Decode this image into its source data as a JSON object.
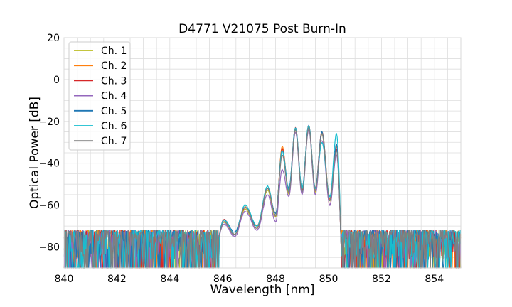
{
  "chart_data": {
    "type": "line",
    "title": "D4771 V21075 Post Burn-In",
    "xlabel": "Wavelength [nm]",
    "ylabel": "Optical Power [dB]",
    "xlim": [
      840,
      855
    ],
    "ylim": [
      -90,
      20
    ],
    "xticks": [
      840,
      842,
      844,
      846,
      848,
      850,
      852,
      854
    ],
    "yticks": [
      20,
      0,
      -20,
      -40,
      -60,
      -80
    ],
    "x_minor_step": 0.5,
    "y_minor_step": 5,
    "grid": true,
    "legend_position": "top-left",
    "noise_floor": -80,
    "series": [
      {
        "name": "Ch. 1",
        "color": "#bcbd22",
        "peaks": [
          [
            846.05,
            -68
          ],
          [
            846.85,
            -62
          ],
          [
            847.7,
            -53
          ],
          [
            848.25,
            -33
          ],
          [
            848.75,
            -24
          ],
          [
            849.25,
            -23
          ],
          [
            849.75,
            -26
          ],
          [
            850.3,
            -34
          ]
        ],
        "dips": [
          [
            846.45,
            -74
          ],
          [
            847.3,
            -71
          ],
          [
            848.0,
            -66
          ],
          [
            848.5,
            -55
          ],
          [
            849.0,
            -54
          ],
          [
            849.5,
            -54
          ],
          [
            850.05,
            -58
          ]
        ]
      },
      {
        "name": "Ch. 2",
        "color": "#ff7f0e",
        "peaks": [
          [
            846.05,
            -68
          ],
          [
            846.85,
            -61
          ],
          [
            847.7,
            -52
          ],
          [
            848.25,
            -32
          ],
          [
            848.75,
            -24
          ],
          [
            849.25,
            -22
          ],
          [
            849.75,
            -25
          ],
          [
            850.3,
            -32
          ]
        ],
        "dips": [
          [
            846.45,
            -74
          ],
          [
            847.3,
            -70
          ],
          [
            848.0,
            -65
          ],
          [
            848.5,
            -54
          ],
          [
            849.0,
            -53
          ],
          [
            849.5,
            -53
          ],
          [
            850.05,
            -57
          ]
        ]
      },
      {
        "name": "Ch. 3",
        "color": "#d62728",
        "peaks": [
          [
            846.05,
            -67
          ],
          [
            846.85,
            -61
          ],
          [
            847.7,
            -52
          ],
          [
            848.25,
            -33
          ],
          [
            848.75,
            -23
          ],
          [
            849.25,
            -22
          ],
          [
            849.75,
            -25
          ],
          [
            850.3,
            -33
          ]
        ],
        "dips": [
          [
            846.45,
            -74
          ],
          [
            847.3,
            -70
          ],
          [
            848.0,
            -65
          ],
          [
            848.5,
            -53
          ],
          [
            849.0,
            -53
          ],
          [
            849.5,
            -52
          ],
          [
            850.05,
            -60
          ]
        ]
      },
      {
        "name": "Ch. 4",
        "color": "#9467bd",
        "peaks": [
          [
            846.05,
            -69
          ],
          [
            846.85,
            -63
          ],
          [
            847.7,
            -55
          ],
          [
            848.25,
            -43
          ],
          [
            848.75,
            -25
          ],
          [
            849.25,
            -24
          ],
          [
            849.75,
            -29
          ],
          [
            850.3,
            -36
          ]
        ],
        "dips": [
          [
            846.45,
            -75
          ],
          [
            847.3,
            -72
          ],
          [
            848.0,
            -68
          ],
          [
            848.5,
            -56
          ],
          [
            849.0,
            -55
          ],
          [
            849.5,
            -55
          ],
          [
            850.05,
            -60
          ]
        ]
      },
      {
        "name": "Ch. 5",
        "color": "#1f77b4",
        "peaks": [
          [
            846.05,
            -67
          ],
          [
            846.85,
            -61
          ],
          [
            847.7,
            -52
          ],
          [
            848.25,
            -34
          ],
          [
            848.75,
            -23
          ],
          [
            849.25,
            -22
          ],
          [
            849.75,
            -25
          ],
          [
            850.3,
            -31
          ]
        ],
        "dips": [
          [
            846.45,
            -73
          ],
          [
            847.3,
            -70
          ],
          [
            848.0,
            -64
          ],
          [
            848.5,
            -52
          ],
          [
            849.0,
            -52
          ],
          [
            849.5,
            -52
          ],
          [
            850.05,
            -58
          ]
        ]
      },
      {
        "name": "Ch. 6",
        "color": "#17becf",
        "peaks": [
          [
            846.05,
            -67
          ],
          [
            846.85,
            -60
          ],
          [
            847.7,
            -51
          ],
          [
            848.25,
            -34
          ],
          [
            848.75,
            -23
          ],
          [
            849.25,
            -22
          ],
          [
            849.75,
            -30
          ],
          [
            850.3,
            -26
          ]
        ],
        "dips": [
          [
            846.45,
            -74
          ],
          [
            847.3,
            -70
          ],
          [
            848.0,
            -65
          ],
          [
            848.5,
            -53
          ],
          [
            849.0,
            -52
          ],
          [
            849.5,
            -52
          ],
          [
            850.05,
            -56
          ]
        ]
      },
      {
        "name": "Ch. 7",
        "color": "#7f7f7f",
        "peaks": [
          [
            846.05,
            -68
          ],
          [
            846.85,
            -61
          ],
          [
            847.7,
            -52
          ],
          [
            848.25,
            -36
          ],
          [
            848.75,
            -24
          ],
          [
            849.25,
            -23
          ],
          [
            849.75,
            -26
          ],
          [
            850.3,
            -34
          ]
        ],
        "dips": [
          [
            846.45,
            -74
          ],
          [
            847.3,
            -71
          ],
          [
            848.0,
            -65
          ],
          [
            848.5,
            -54
          ],
          [
            849.0,
            -54
          ],
          [
            849.5,
            -53
          ],
          [
            850.05,
            -58
          ]
        ]
      }
    ]
  }
}
